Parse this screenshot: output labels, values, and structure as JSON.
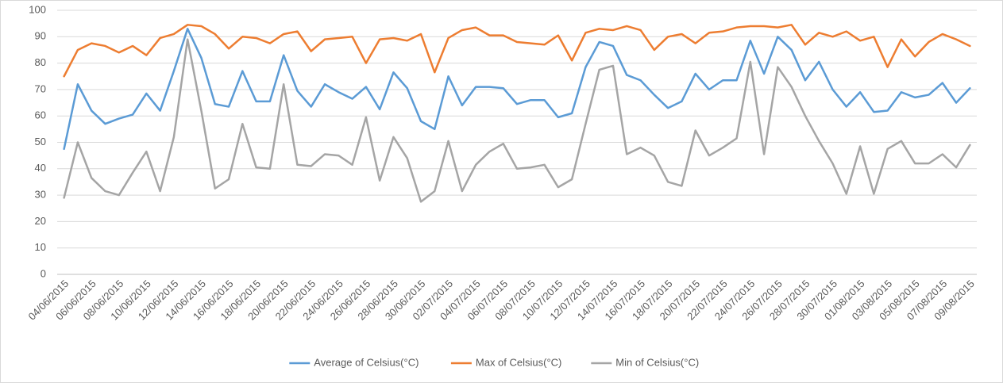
{
  "chart_data": {
    "type": "line",
    "categories": [
      "04/06/2015",
      null,
      "06/06/2015",
      null,
      "08/06/2015",
      null,
      "10/06/2015",
      null,
      "12/06/2015",
      null,
      "14/06/2015",
      null,
      "16/06/2015",
      null,
      "18/06/2015",
      null,
      "20/06/2015",
      null,
      "22/06/2015",
      null,
      "24/06/2015",
      null,
      "26/06/2015",
      null,
      "28/06/2015",
      null,
      "30/06/2015",
      null,
      "02/07/2015",
      null,
      "04/07/2015",
      null,
      "06/07/2015",
      null,
      "08/07/2015",
      null,
      "10/07/2015",
      null,
      "12/07/2015",
      null,
      "14/07/2015",
      null,
      "16/07/2015",
      null,
      "18/07/2015",
      null,
      "20/07/2015",
      null,
      "22/07/2015",
      null,
      "24/07/2015",
      null,
      "26/07/2015",
      null,
      "28/07/2015",
      null,
      "30/07/2015",
      null,
      "01/08/2015",
      null,
      "03/08/2015",
      null,
      "05/08/2015",
      null,
      "07/08/2015",
      null,
      "09/08/2015"
    ],
    "series": [
      {
        "name": "Average of Celsius(°C)",
        "color": "#5b9bd5",
        "values": [
          47.5,
          72,
          62,
          57,
          59,
          60.5,
          68.5,
          62,
          77,
          93,
          82,
          64.5,
          63.5,
          77,
          65.5,
          65.5,
          83,
          69.5,
          63.5,
          72,
          69,
          66.5,
          71,
          62.5,
          76.5,
          70.5,
          58,
          55,
          75,
          64,
          71,
          71,
          70.5,
          64.5,
          66,
          66,
          59.5,
          61,
          78.5,
          88,
          86.5,
          75.5,
          73.5,
          68,
          63,
          65.5,
          76,
          70,
          73.5,
          73.5,
          88.5,
          76,
          90,
          85,
          73.5,
          80.5,
          70,
          63.5,
          69,
          61.5,
          62,
          69,
          67,
          68,
          72.5,
          65,
          70.5
        ]
      },
      {
        "name": "Max of Celsius(°C)",
        "color": "#ed7d31",
        "values": [
          75,
          85,
          87.5,
          86.5,
          84,
          86.5,
          83,
          89.5,
          91,
          94.5,
          94,
          91,
          85.5,
          90,
          89.5,
          87.5,
          91,
          92,
          84.5,
          89,
          89.5,
          90,
          80,
          89,
          89.5,
          88.5,
          91,
          76.5,
          89.5,
          92.5,
          93.5,
          90.5,
          90.5,
          88,
          87.5,
          87,
          90.5,
          81,
          91.5,
          93,
          92.5,
          94,
          92.5,
          85,
          90,
          91,
          87.5,
          91.5,
          92,
          93.5,
          94,
          94,
          93.5,
          94.5,
          87,
          91.5,
          90,
          92,
          88.5,
          90,
          78.5,
          89,
          82.5,
          88,
          91,
          89,
          86.5
        ]
      },
      {
        "name": "Min of Celsius(°C)",
        "color": "#a5a5a5",
        "values": [
          29,
          50,
          36.5,
          31.5,
          30,
          38.5,
          46.5,
          31.5,
          52,
          89,
          62,
          32.5,
          36,
          57,
          40.5,
          40,
          72,
          41.5,
          41,
          45.5,
          45,
          41.5,
          59.5,
          35.5,
          52,
          44,
          27.5,
          31.5,
          50.5,
          31.5,
          41.5,
          46.5,
          49.5,
          40,
          40.5,
          41.5,
          33,
          36,
          57,
          77.5,
          79,
          45.5,
          48,
          45,
          35,
          33.5,
          54.5,
          45,
          48,
          51.5,
          80.5,
          45.5,
          78.5,
          71,
          60,
          50.5,
          42,
          30.5,
          48.5,
          30.5,
          47.5,
          50.5,
          42,
          42,
          45.5,
          40.5,
          49
        ]
      }
    ],
    "ylim": [
      0,
      100
    ],
    "yticks": [
      0,
      10,
      20,
      30,
      40,
      50,
      60,
      70,
      80,
      90,
      100
    ],
    "grid": true,
    "legend": "bottom"
  }
}
